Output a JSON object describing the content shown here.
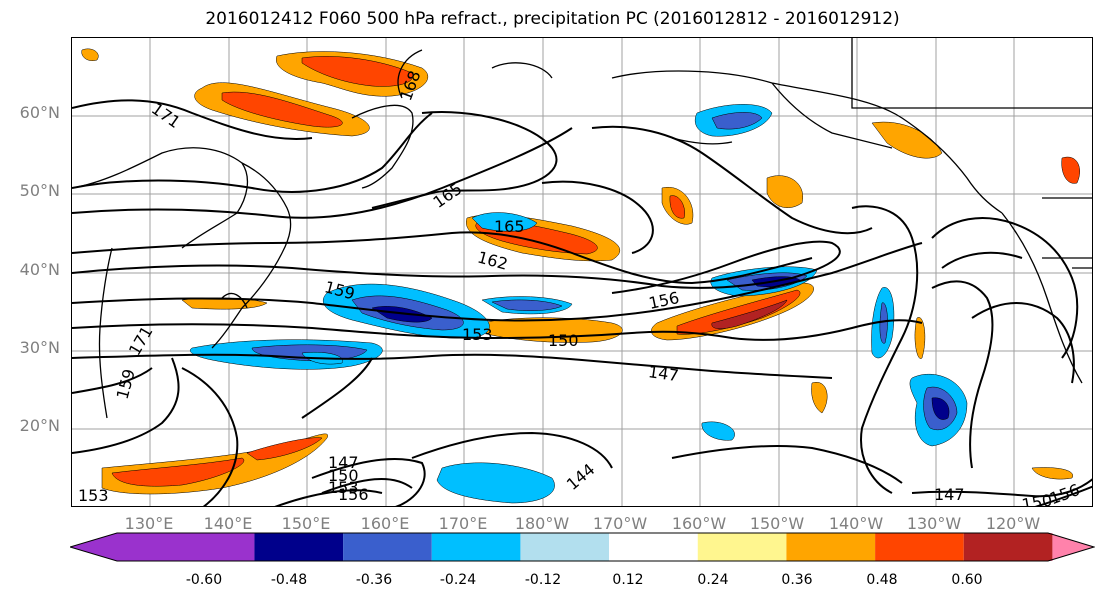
{
  "title": "2016012412 F060 500 hPa refract., precipitation PC (2016012812 - 2016012912)",
  "lat_labels": [
    "60°N",
    "50°N",
    "40°N",
    "30°N",
    "20°N"
  ],
  "lon_labels": [
    "130°E",
    "140°E",
    "150°E",
    "160°E",
    "170°E",
    "180°W",
    "170°W",
    "160°W",
    "150°W",
    "140°W",
    "130°W",
    "120°W"
  ],
  "colorbar": {
    "colors": [
      "#9a32cd",
      "#00008b",
      "#3a5fcd",
      "#00bfff",
      "#b2dfee",
      "#ffffff",
      "#fff68f",
      "#ffa500",
      "#ff4500",
      "#b22222",
      "#ff82ab"
    ],
    "tick_labels": [
      "-0.60",
      "-0.48",
      "-0.36",
      "-0.24",
      "-0.12",
      "0.12",
      "0.24",
      "0.36",
      "0.48",
      "0.60"
    ]
  },
  "contour_labels": [
    "171",
    "168",
    "165",
    "165",
    "162",
    "159",
    "156",
    "153",
    "150",
    "147",
    "144",
    "147",
    "150",
    "153",
    "156",
    "153",
    "159",
    "171",
    "147",
    "150",
    "156"
  ]
}
